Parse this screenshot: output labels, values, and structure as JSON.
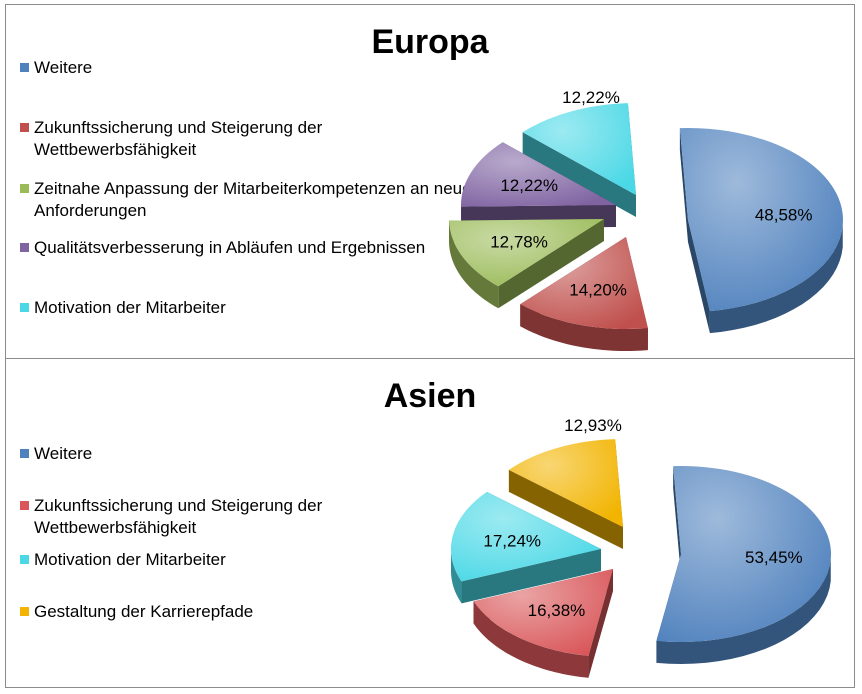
{
  "chart_data": [
    {
      "type": "pie",
      "title": "Europa",
      "legend_placement": "left",
      "slices": [
        {
          "label": "Weitere",
          "value": 48.58,
          "value_label": "48,58%",
          "color": "#4f81bd"
        },
        {
          "label": "Zukunftssicherung und Steigerung der Wettbewerbsfähigkeit",
          "value": 14.2,
          "value_label": "14,20%",
          "color": "#c0504d"
        },
        {
          "label": "Zeitnahe Anpassung der Mitarbeiterkompetenzen an neue Anforderungen",
          "value": 12.78,
          "value_label": "12,78%",
          "color": "#9bbb59"
        },
        {
          "label": "Qualitätsverbesserung in Abläufen und Ergebnissen",
          "value": 12.22,
          "value_label": "12,22%",
          "color": "#8064a2"
        },
        {
          "label": "Motivation der Mitarbeiter",
          "value": 12.22,
          "value_label": "12,22%",
          "color": "#4bd8e6"
        }
      ]
    },
    {
      "type": "pie",
      "title": "Asien",
      "legend_placement": "left",
      "slices": [
        {
          "label": "Weitere",
          "value": 53.45,
          "value_label": "53,45%",
          "color": "#4f81bd"
        },
        {
          "label": "Zukunftssicherung und Steigerung der Wettbewerbsfähigkeit",
          "value": 16.38,
          "value_label": "16,38%",
          "color": "#d9575a"
        },
        {
          "label": "Motivation der Mitarbeiter",
          "value": 17.24,
          "value_label": "17,24%",
          "color": "#4bd8e6"
        },
        {
          "label": "Gestaltung der Karrierepfade",
          "value": 12.93,
          "value_label": "12,93%",
          "color": "#f2b400"
        }
      ]
    }
  ]
}
